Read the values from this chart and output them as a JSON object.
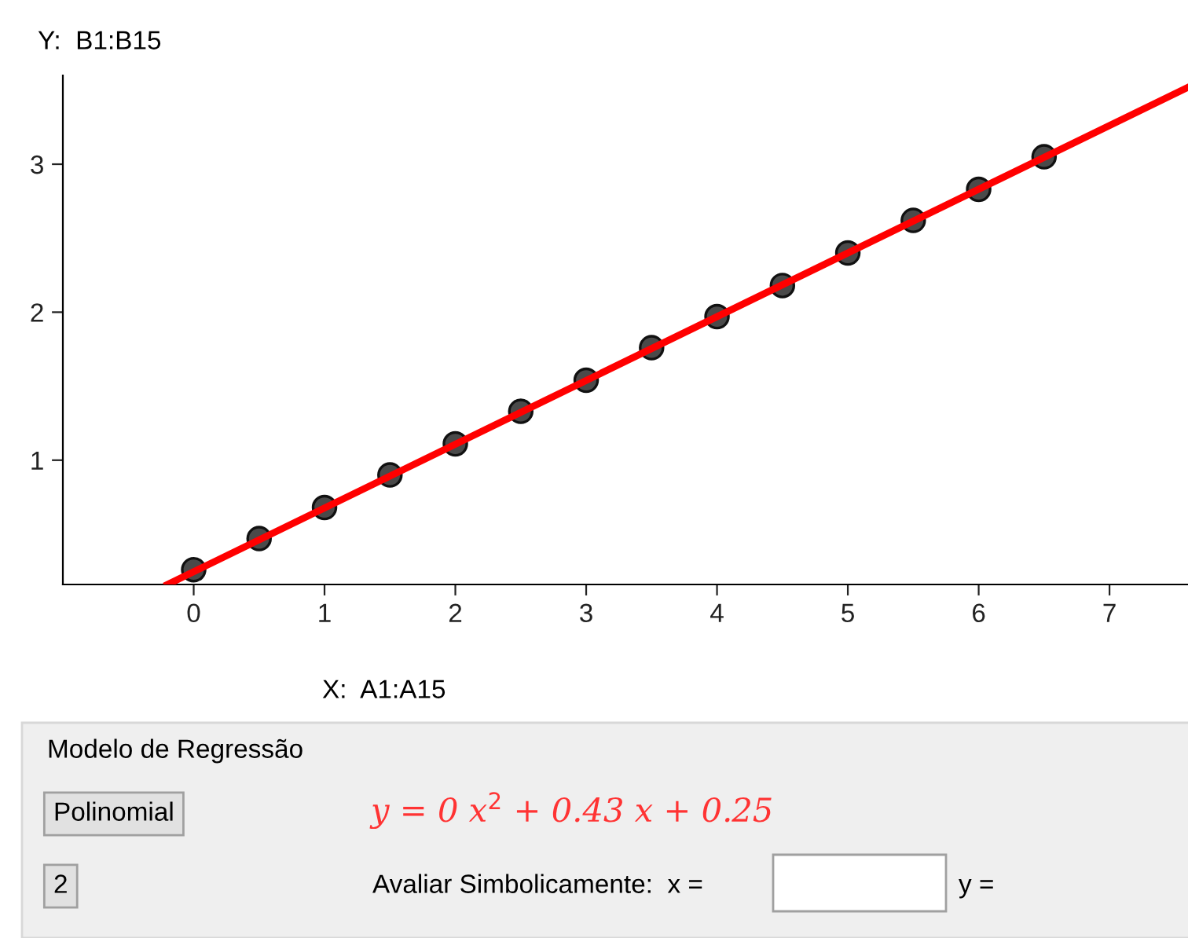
{
  "chart_data": {
    "type": "scatter",
    "xlabel": "X:  A1:A15",
    "ylabel": "Y:  B1:B15",
    "x": [
      0,
      0.5,
      1,
      1.5,
      2,
      2.5,
      3,
      3.5,
      4,
      4.5,
      5,
      5.5,
      6,
      6.5
    ],
    "series": [
      {
        "color": "#4a4a4a",
        "marker": "circle",
        "values": [
          0.26,
          0.47,
          0.68,
          0.9,
          1.11,
          1.33,
          1.54,
          1.76,
          1.97,
          2.18,
          2.4,
          2.62,
          2.83,
          3.05
        ]
      },
      {
        "type": "line",
        "color": "#ff0000",
        "marker": "none",
        "x": [
          -0.2,
          7.6
        ],
        "values": [
          0.16,
          3.52
        ]
      }
    ],
    "xlim": [
      -1.0,
      7.6
    ],
    "ylim": [
      0.16,
      3.6
    ],
    "xticks": [
      0,
      1,
      2,
      3,
      4,
      5,
      6,
      7
    ],
    "yticks": [
      1,
      2,
      3
    ],
    "grid": false,
    "legend": false,
    "annotations": [
      "Modelo de Regressão",
      "Polinomial",
      "2",
      "y = 0 x$^{2}$ + 0.43 x + 0.25",
      "Avaliar Simbolicamente:  x =",
      "y ="
    ]
  }
}
